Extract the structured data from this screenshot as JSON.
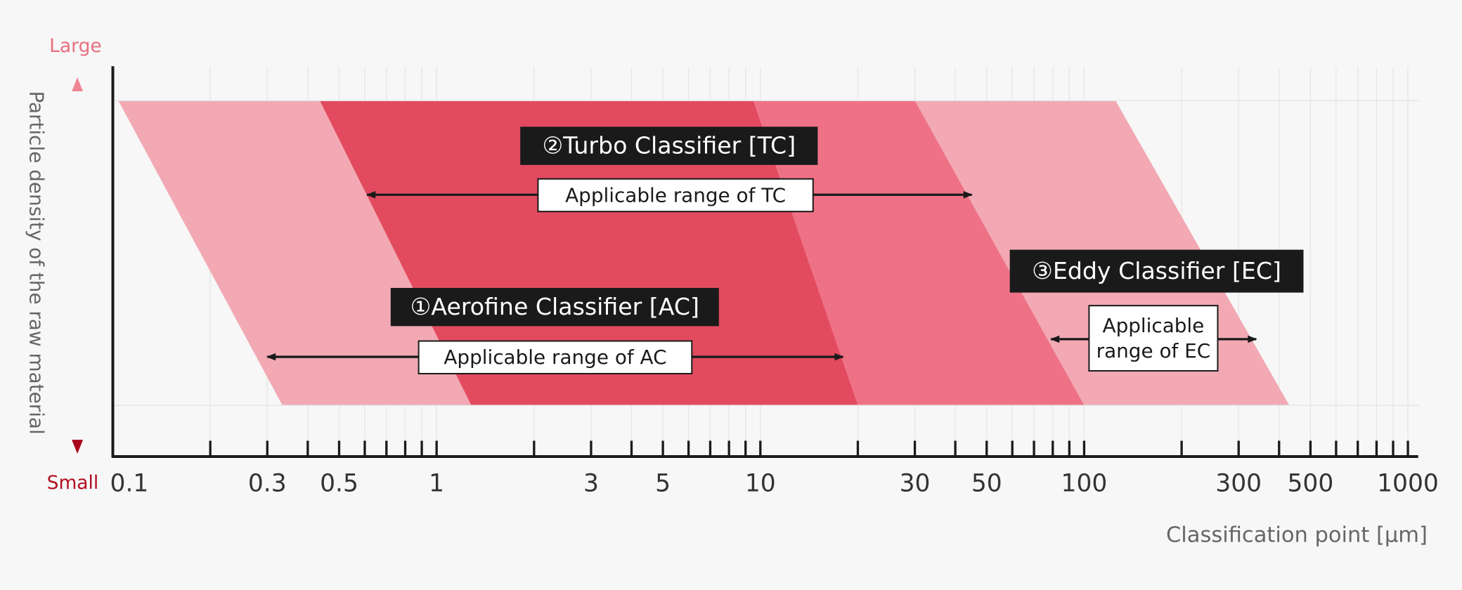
{
  "chart_data": {
    "type": "band",
    "y_label": "Particle density of the raw material",
    "y_top_label": "Large",
    "y_bottom_label": "Small",
    "x_label": "Classification point [µm]",
    "log_x": true,
    "grid": true,
    "xlim": [
      0.1,
      1000
    ],
    "xticks": [
      0.1,
      0.3,
      0.5,
      1,
      3,
      5,
      10,
      30,
      50,
      100,
      300,
      500,
      1000
    ],
    "xminorticks": [
      0.2,
      0.3,
      0.4,
      0.5,
      0.6,
      0.7,
      0.8,
      0.9,
      1,
      2,
      3,
      4,
      5,
      6,
      7,
      8,
      9,
      10,
      20,
      30,
      40,
      50,
      60,
      70,
      80,
      90,
      100,
      200,
      300,
      400,
      500,
      600,
      700,
      800,
      900,
      1000
    ],
    "series": [
      {
        "name": "①Aerofine Classifier [AC]",
        "color": "#f2a9b4",
        "top": [
          0.104,
          9.5
        ],
        "bottom": [
          0.334,
          20
        ],
        "range": [
          0.3,
          18
        ],
        "range_label": [
          "Applicable range of AC"
        ]
      },
      {
        "name": "②Turbo Classifier [TC]",
        "color": "#ef7186",
        "top": [
          0.436,
          30
        ],
        "bottom": [
          1.28,
          100
        ],
        "range": [
          0.61,
          45
        ],
        "range_label": [
          "Applicable range of TC"
        ]
      },
      {
        "name": "③Eddy Classifier [EC]",
        "color": "#f2a9b4",
        "top": [
          30,
          125
        ],
        "bottom": [
          100,
          430
        ],
        "range": [
          79,
          340
        ],
        "range_label": [
          "Applicable",
          "range of EC"
        ]
      }
    ]
  }
}
